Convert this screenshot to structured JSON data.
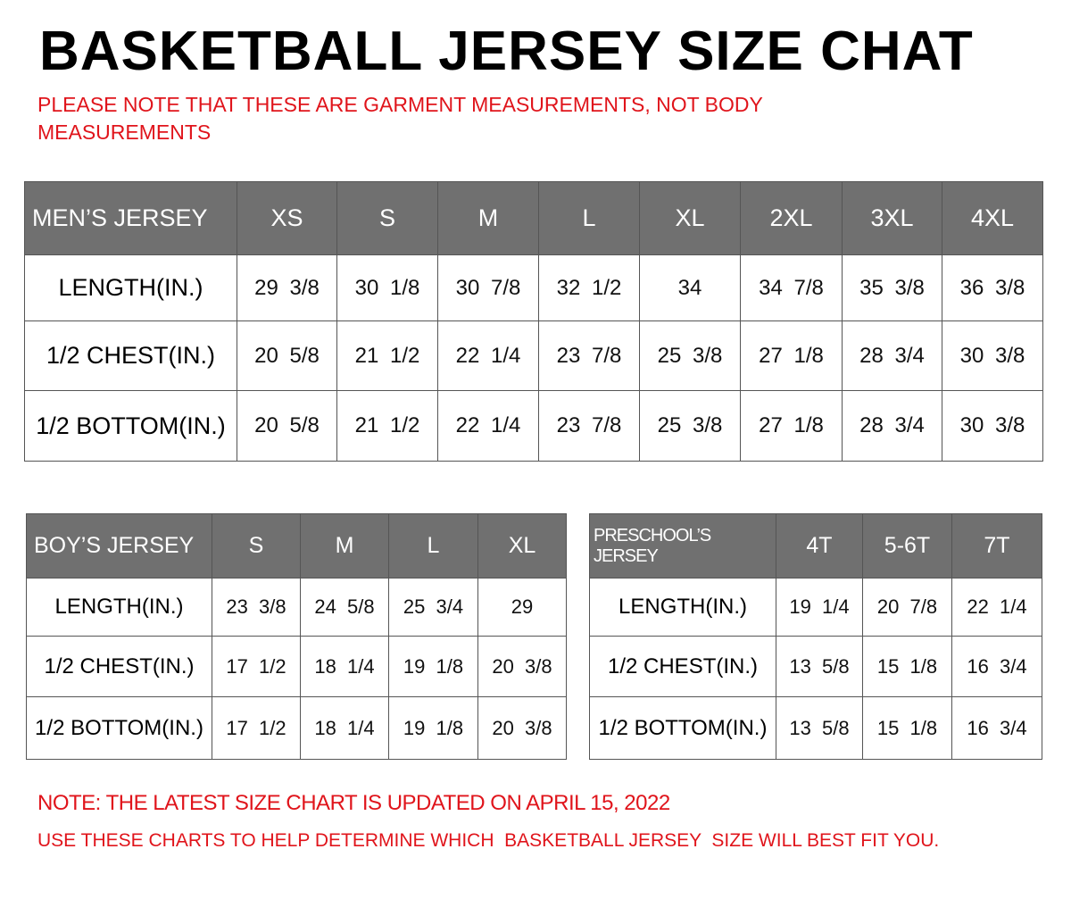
{
  "title": "BASKETBALL JERSEY SIZE CHAT",
  "subtitle": "PLEASE NOTE THAT THESE ARE GARMENT MEASUREMENTS, NOT BODY MEASUREMENTS",
  "colors": {
    "header_bg": "#707070",
    "note_red": "#e0141b"
  },
  "tables": {
    "mens": {
      "header": [
        "MEN’S JERSEY",
        "XS",
        "S",
        "M",
        "L",
        "XL",
        "2XL",
        "3XL",
        "4XL"
      ],
      "rows": [
        [
          "LENGTH(IN.)",
          "29 3/8",
          "30 1/8",
          "30 7/8",
          "32 1/2",
          "34",
          "34 7/8",
          "35 3/8",
          "36 3/8"
        ],
        [
          "1/2 CHEST(IN.)",
          "20 5/8",
          "21 1/2",
          "22 1/4",
          "23 7/8",
          "25 3/8",
          "27 1/8",
          "28 3/4",
          "30 3/8"
        ],
        [
          "1/2 BOTTOM(IN.)",
          "20 5/8",
          "21 1/2",
          "22 1/4",
          "23 7/8",
          "25 3/8",
          "27 1/8",
          "28 3/4",
          "30 3/8"
        ]
      ]
    },
    "boys": {
      "header": [
        "BOY’S JERSEY",
        "S",
        "M",
        "L",
        "XL"
      ],
      "rows": [
        [
          "LENGTH(IN.)",
          "23 3/8",
          "24 5/8",
          "25 3/4",
          "29"
        ],
        [
          "1/2 CHEST(IN.)",
          "17 1/2",
          "18 1/4",
          "19 1/8",
          "20 3/8"
        ],
        [
          "1/2 BOTTOM(IN.)",
          "17 1/2",
          "18 1/4",
          "19 1/8",
          "20 3/8"
        ]
      ]
    },
    "pre": {
      "header": [
        "PRESCHOOL’S JERSEY",
        "4T",
        "5-6T",
        "7T"
      ],
      "rows": [
        [
          "LENGTH(IN.)",
          "19 1/4",
          "20 7/8",
          "22 1/4"
        ],
        [
          "1/2 CHEST(IN.)",
          "13 5/8",
          "15 1/8",
          "16 3/4"
        ],
        [
          "1/2 BOTTOM(IN.)",
          "13 5/8",
          "15 1/8",
          "16 3/4"
        ]
      ]
    }
  },
  "footer": {
    "note1": "NOTE: THE LATEST SIZE CHART IS UPDATED ON APRIL 15, 2022",
    "note2": "USE THESE CHARTS TO HELP DETERMINE WHICH  BASKETBALL JERSEY  SIZE WILL BEST FIT YOU."
  }
}
